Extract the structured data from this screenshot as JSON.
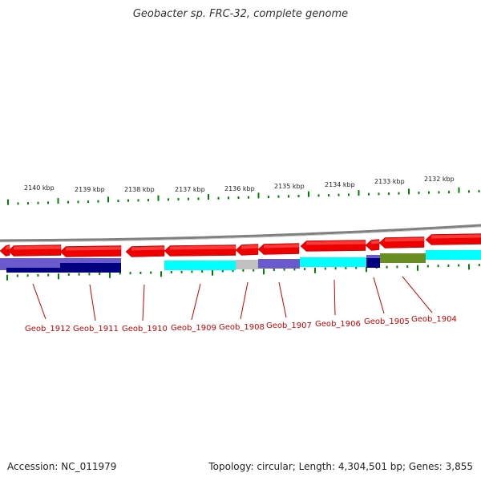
{
  "title": "Geobacter sp. FRC-32, complete genome",
  "footer": {
    "accession": "Accession: NC_011979",
    "summary": "Topology: circular; Length: 4,304,501 bp; Genes: 3,855"
  },
  "colors": {
    "strand_forward": "#ee0000",
    "track_cyan": "#00ffff",
    "track_blue": "#6a5acd",
    "track_navy": "#000080",
    "track_gray": "#c0c0c0",
    "track_olive": "#6b8e23",
    "tick": "#008000",
    "backbone": "#808080",
    "label": "#cc0000"
  },
  "scale_labels": [
    "2140 kbp",
    "2139 kbp",
    "2138 kbp",
    "2137 kbp",
    "2136 kbp",
    "2135 kbp",
    "2134 kbp",
    "2133 kbp",
    "2132 kbp"
  ],
  "genes": [
    "Geob_1912",
    "Geob_1911",
    "Geob_1910",
    "Geob_1909",
    "Geob_1908",
    "Geob_1907",
    "Geob_1906",
    "Geob_1905",
    "Geob_1904"
  ]
}
